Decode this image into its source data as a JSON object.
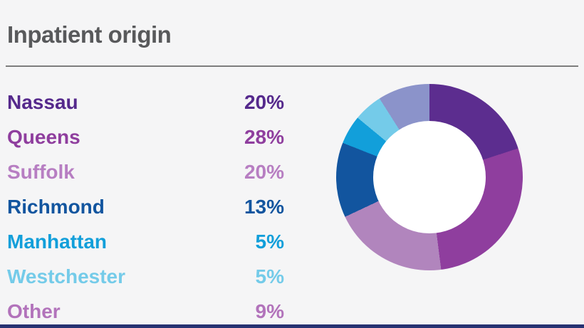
{
  "page": {
    "background_color": "#f5f5f6",
    "bottom_bar_color": "#273272"
  },
  "header": {
    "title": "Inpatient origin",
    "title_color": "#58595b",
    "rule_color": "#7d7d7d"
  },
  "chart_data": {
    "type": "pie",
    "subtype": "donut",
    "title": "Inpatient origin",
    "categories": [
      "Nassau",
      "Queens",
      "Suffolk",
      "Richmond",
      "Manhattan",
      "Westchester",
      "Other"
    ],
    "values": [
      20,
      28,
      20,
      13,
      5,
      5,
      9
    ],
    "unit": "%",
    "slice_colors": [
      "#5c2d8f",
      "#8f3e9e",
      "#b185bd",
      "#12559f",
      "#129fda",
      "#74cbe9",
      "#8b93ca"
    ],
    "label_colors": [
      "#55298c",
      "#8f3e9e",
      "#b77ec2",
      "#12559f",
      "#129fda",
      "#74cbe9",
      "#b273bb"
    ],
    "start_angle_deg": 0,
    "direction": "clockwise",
    "donut_hole_ratio": 0.6,
    "hole_color": "#ffffff",
    "legend_position": "left",
    "legend_rows": [
      {
        "label": "Nassau",
        "value_text": "20%"
      },
      {
        "label": "Queens",
        "value_text": "28%"
      },
      {
        "label": "Suffolk",
        "value_text": "20%"
      },
      {
        "label": "Richmond",
        "value_text": "13%"
      },
      {
        "label": "Manhattan",
        "value_text": "5%"
      },
      {
        "label": "Westchester",
        "value_text": "5%"
      },
      {
        "label": "Other",
        "value_text": "9%"
      }
    ]
  }
}
